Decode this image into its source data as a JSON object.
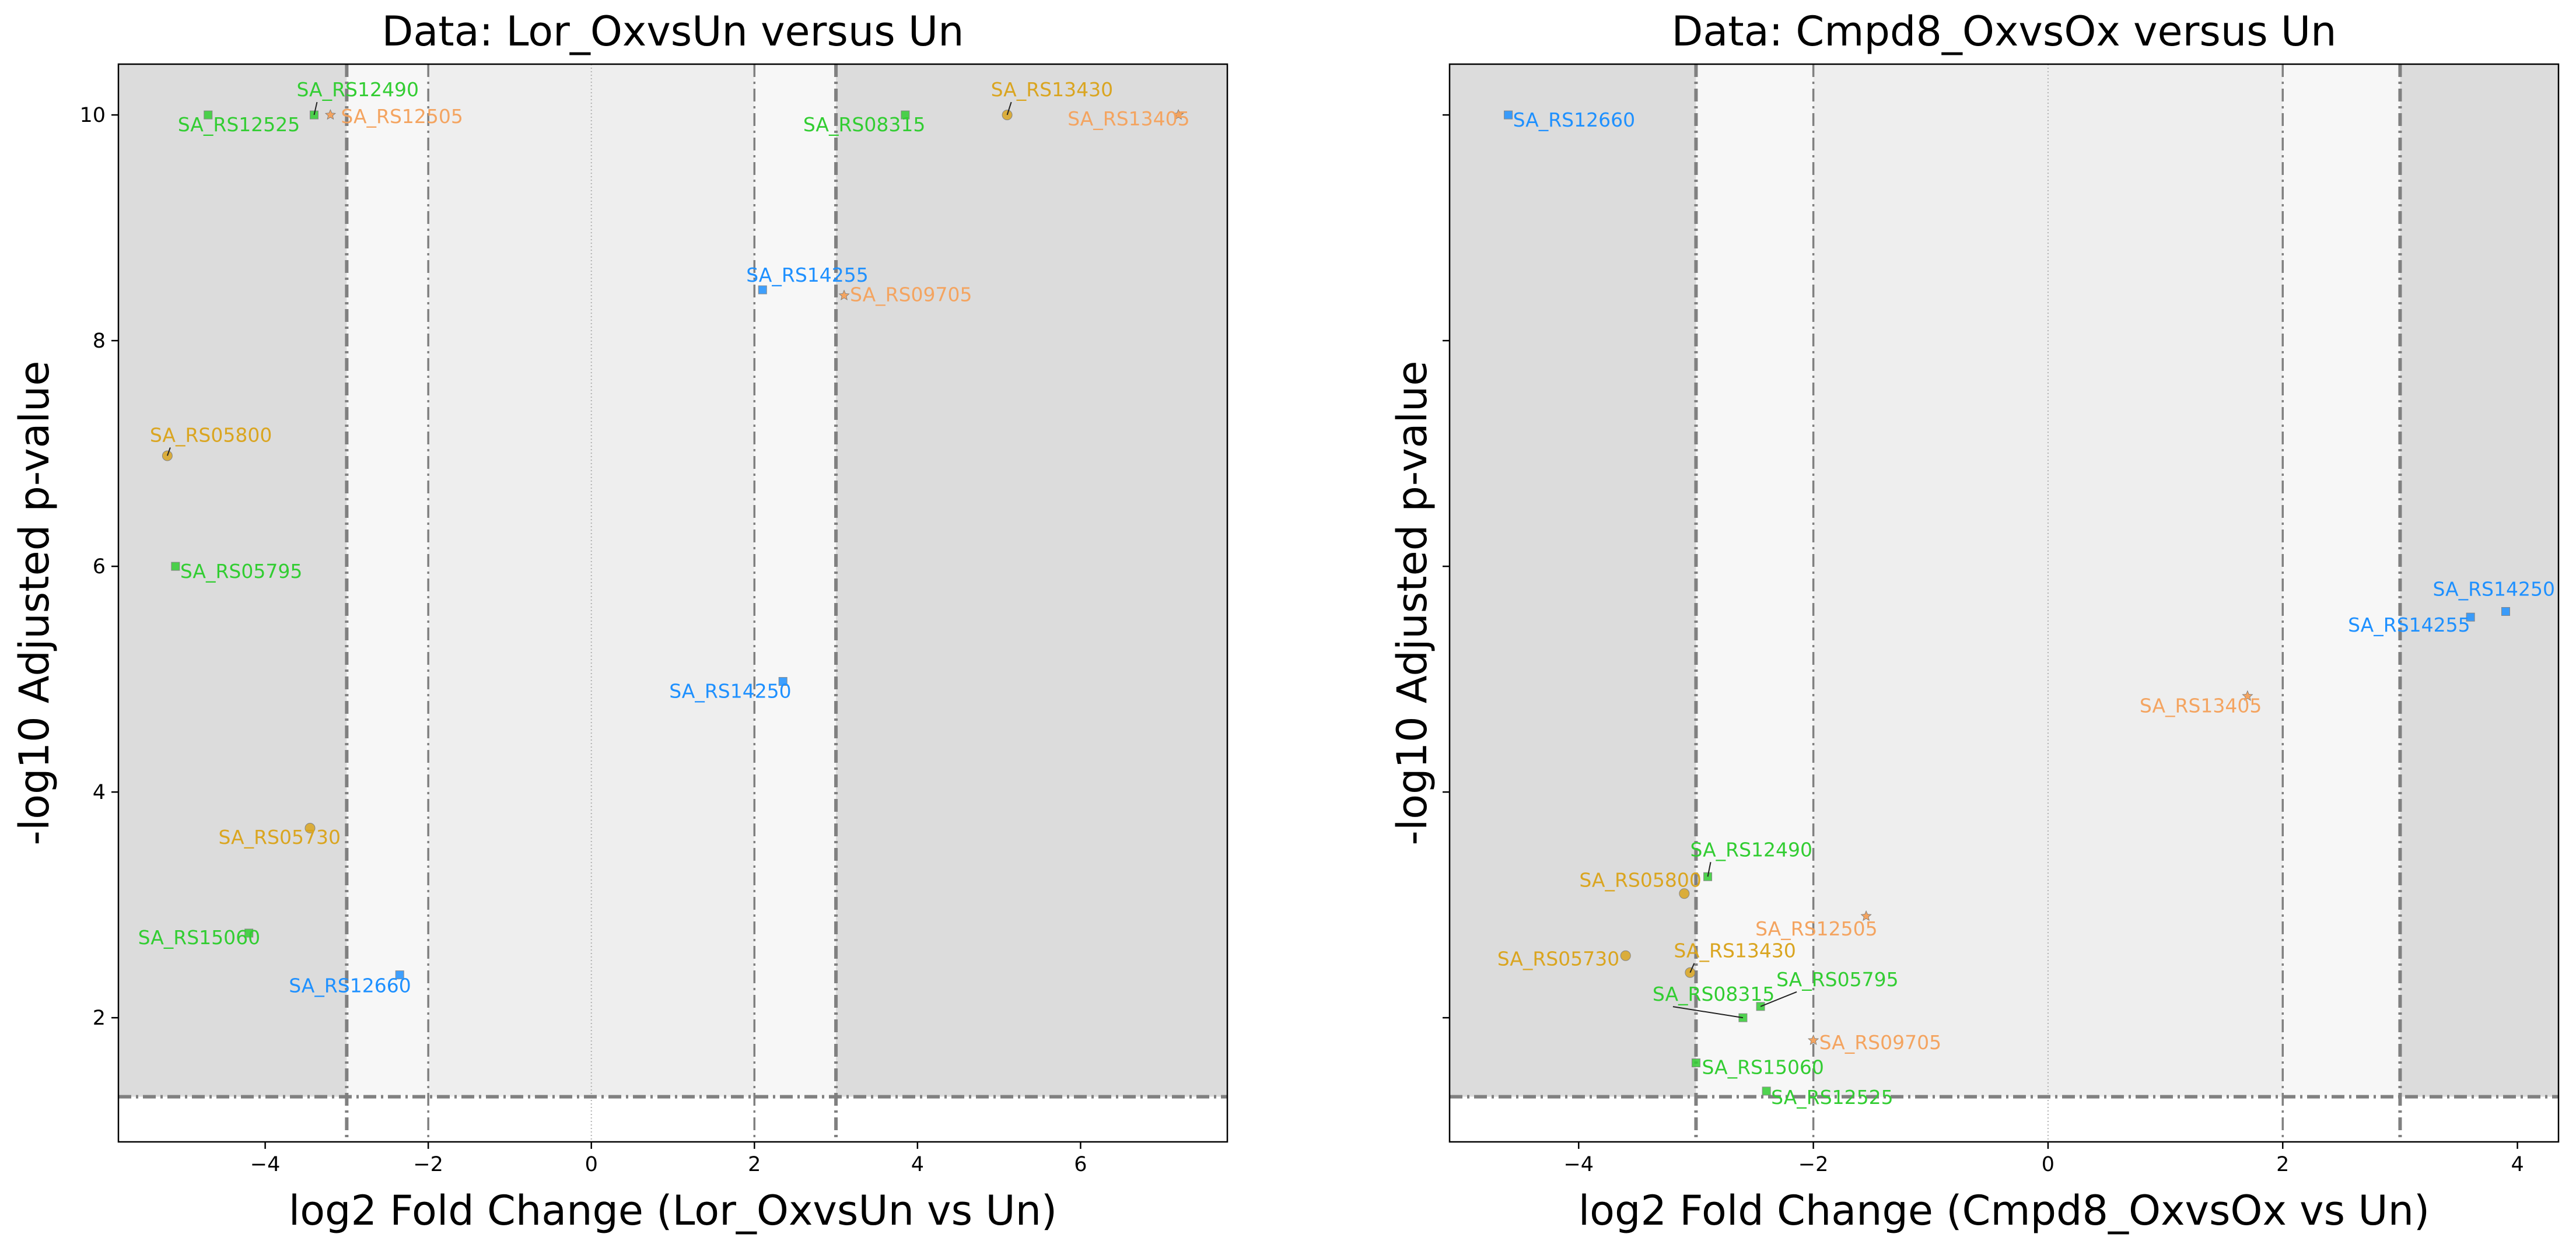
{
  "chart_data": [
    {
      "type": "scatter",
      "title": "Data: Lor_OxvsUn versus Un",
      "xlabel": "log2 Fold Change (Lor_OxvsUn vs Un)",
      "ylabel": "-log10 Adjusted p-value",
      "xlim": [
        -5.8,
        7.8
      ],
      "ylim": [
        0.9,
        10.45
      ],
      "xticks": [
        -4,
        -2,
        0,
        2,
        4,
        6
      ],
      "yticks": [
        2,
        4,
        6,
        8,
        10
      ],
      "show_ytick_labels": true,
      "fc_thresholds": [
        -3,
        -2,
        2,
        3
      ],
      "p_threshold": 1.3,
      "points": [
        {
          "label": "SA_RS12525",
          "x": -4.7,
          "y": 10.0,
          "color": "#32cd32",
          "marker": "square"
        },
        {
          "label": "SA_RS12490",
          "x": -3.4,
          "y": 10.0,
          "color": "#32cd32",
          "marker": "square"
        },
        {
          "label": "SA_RS12505",
          "x": -3.2,
          "y": 10.0,
          "color": "#f4a460",
          "marker": "star"
        },
        {
          "label": "SA_RS08315",
          "x": 3.85,
          "y": 10.0,
          "color": "#32cd32",
          "marker": "square"
        },
        {
          "label": "SA_RS13430",
          "x": 5.1,
          "y": 10.0,
          "color": "#daa520",
          "marker": "circle"
        },
        {
          "label": "SA_RS13405",
          "x": 7.2,
          "y": 10.0,
          "color": "#f4a460",
          "marker": "star"
        },
        {
          "label": "SA_RS14255",
          "x": 2.1,
          "y": 8.45,
          "color": "#1e90ff",
          "marker": "square"
        },
        {
          "label": "SA_RS09705",
          "x": 3.1,
          "y": 8.4,
          "color": "#f4a460",
          "marker": "star"
        },
        {
          "label": "SA_RS05800",
          "x": -5.2,
          "y": 6.98,
          "color": "#daa520",
          "marker": "circle"
        },
        {
          "label": "SA_RS05795",
          "x": -5.1,
          "y": 6.0,
          "color": "#32cd32",
          "marker": "square"
        },
        {
          "label": "SA_RS14250",
          "x": 2.35,
          "y": 4.98,
          "color": "#1e90ff",
          "marker": "square"
        },
        {
          "label": "SA_RS05730",
          "x": -3.45,
          "y": 3.68,
          "color": "#daa520",
          "marker": "circle"
        },
        {
          "label": "SA_RS15060",
          "x": -4.2,
          "y": 2.75,
          "color": "#32cd32",
          "marker": "square"
        },
        {
          "label": "SA_RS12660",
          "x": -2.35,
          "y": 2.38,
          "color": "#1e90ff",
          "marker": "square"
        }
      ]
    },
    {
      "type": "scatter",
      "title": "Data: Cmpd8_OxvsOx versus Un",
      "xlabel": "log2 Fold Change (Cmpd8_OxvsOx vs Un)",
      "ylabel": "-log10 Adjusted p-value",
      "xlim": [
        -5.1,
        4.35
      ],
      "ylim": [
        0.9,
        10.45
      ],
      "xticks": [
        -4,
        -2,
        0,
        2,
        4
      ],
      "yticks": [
        2,
        4,
        6,
        8,
        10
      ],
      "show_ytick_labels": false,
      "fc_thresholds": [
        -3,
        -2,
        2,
        3
      ],
      "p_threshold": 1.3,
      "points": [
        {
          "label": "SA_RS12660",
          "x": -4.6,
          "y": 10.0,
          "color": "#1e90ff",
          "marker": "square"
        },
        {
          "label": "SA_RS14250",
          "x": 3.9,
          "y": 5.6,
          "color": "#1e90ff",
          "marker": "square"
        },
        {
          "label": "SA_RS14255",
          "x": 3.6,
          "y": 5.55,
          "color": "#1e90ff",
          "marker": "square"
        },
        {
          "label": "SA_RS13405",
          "x": 1.7,
          "y": 4.85,
          "color": "#f4a460",
          "marker": "star"
        },
        {
          "label": "SA_RS12490",
          "x": -2.9,
          "y": 3.25,
          "color": "#32cd32",
          "marker": "square"
        },
        {
          "label": "SA_RS05800",
          "x": -3.1,
          "y": 3.1,
          "color": "#daa520",
          "marker": "circle"
        },
        {
          "label": "SA_RS12505",
          "x": -1.55,
          "y": 2.9,
          "color": "#f4a460",
          "marker": "star"
        },
        {
          "label": "SA_RS05730",
          "x": -3.6,
          "y": 2.55,
          "color": "#daa520",
          "marker": "circle"
        },
        {
          "label": "SA_RS13430",
          "x": -3.05,
          "y": 2.4,
          "color": "#daa520",
          "marker": "circle"
        },
        {
          "label": "SA_RS08315",
          "x": -2.6,
          "y": 2.0,
          "color": "#32cd32",
          "marker": "square"
        },
        {
          "label": "SA_RS05795",
          "x": -2.45,
          "y": 2.1,
          "color": "#32cd32",
          "marker": "square"
        },
        {
          "label": "SA_RS09705",
          "x": -2.0,
          "y": 1.8,
          "color": "#f4a460",
          "marker": "star"
        },
        {
          "label": "SA_RS15060",
          "x": -3.0,
          "y": 1.6,
          "color": "#32cd32",
          "marker": "square"
        },
        {
          "label": "SA_RS12525",
          "x": -2.4,
          "y": 1.35,
          "color": "#32cd32",
          "marker": "square"
        }
      ]
    }
  ]
}
